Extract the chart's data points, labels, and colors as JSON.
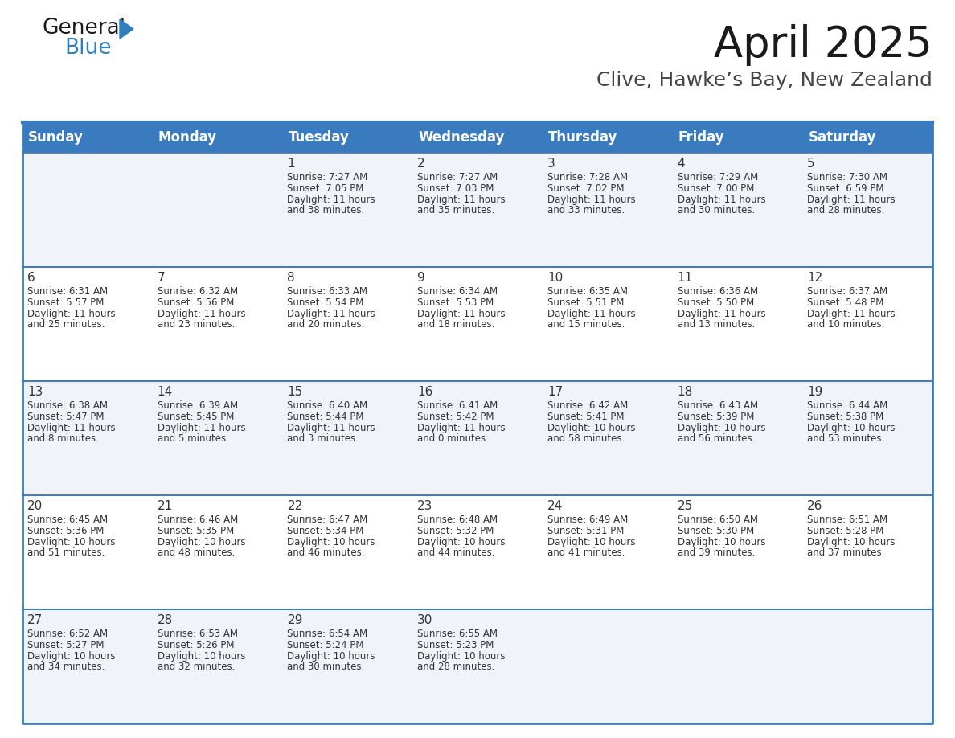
{
  "title": "April 2025",
  "subtitle": "Clive, Hawke’s Bay, New Zealand",
  "header_bg": "#3a7abf",
  "header_text": "#ffffff",
  "day_names": [
    "Sunday",
    "Monday",
    "Tuesday",
    "Wednesday",
    "Thursday",
    "Friday",
    "Saturday"
  ],
  "cell_text_color": "#333333",
  "border_color": "#3a7abf",
  "days": [
    {
      "date": 1,
      "col": 2,
      "row": 0,
      "sunrise": "7:27 AM",
      "sunset": "7:05 PM",
      "daylight": "11 hours and 38 minutes."
    },
    {
      "date": 2,
      "col": 3,
      "row": 0,
      "sunrise": "7:27 AM",
      "sunset": "7:03 PM",
      "daylight": "11 hours and 35 minutes."
    },
    {
      "date": 3,
      "col": 4,
      "row": 0,
      "sunrise": "7:28 AM",
      "sunset": "7:02 PM",
      "daylight": "11 hours and 33 minutes."
    },
    {
      "date": 4,
      "col": 5,
      "row": 0,
      "sunrise": "7:29 AM",
      "sunset": "7:00 PM",
      "daylight": "11 hours and 30 minutes."
    },
    {
      "date": 5,
      "col": 6,
      "row": 0,
      "sunrise": "7:30 AM",
      "sunset": "6:59 PM",
      "daylight": "11 hours and 28 minutes."
    },
    {
      "date": 6,
      "col": 0,
      "row": 1,
      "sunrise": "6:31 AM",
      "sunset": "5:57 PM",
      "daylight": "11 hours and 25 minutes."
    },
    {
      "date": 7,
      "col": 1,
      "row": 1,
      "sunrise": "6:32 AM",
      "sunset": "5:56 PM",
      "daylight": "11 hours and 23 minutes."
    },
    {
      "date": 8,
      "col": 2,
      "row": 1,
      "sunrise": "6:33 AM",
      "sunset": "5:54 PM",
      "daylight": "11 hours and 20 minutes."
    },
    {
      "date": 9,
      "col": 3,
      "row": 1,
      "sunrise": "6:34 AM",
      "sunset": "5:53 PM",
      "daylight": "11 hours and 18 minutes."
    },
    {
      "date": 10,
      "col": 4,
      "row": 1,
      "sunrise": "6:35 AM",
      "sunset": "5:51 PM",
      "daylight": "11 hours and 15 minutes."
    },
    {
      "date": 11,
      "col": 5,
      "row": 1,
      "sunrise": "6:36 AM",
      "sunset": "5:50 PM",
      "daylight": "11 hours and 13 minutes."
    },
    {
      "date": 12,
      "col": 6,
      "row": 1,
      "sunrise": "6:37 AM",
      "sunset": "5:48 PM",
      "daylight": "11 hours and 10 minutes."
    },
    {
      "date": 13,
      "col": 0,
      "row": 2,
      "sunrise": "6:38 AM",
      "sunset": "5:47 PM",
      "daylight": "11 hours and 8 minutes."
    },
    {
      "date": 14,
      "col": 1,
      "row": 2,
      "sunrise": "6:39 AM",
      "sunset": "5:45 PM",
      "daylight": "11 hours and 5 minutes."
    },
    {
      "date": 15,
      "col": 2,
      "row": 2,
      "sunrise": "6:40 AM",
      "sunset": "5:44 PM",
      "daylight": "11 hours and 3 minutes."
    },
    {
      "date": 16,
      "col": 3,
      "row": 2,
      "sunrise": "6:41 AM",
      "sunset": "5:42 PM",
      "daylight": "11 hours and 0 minutes."
    },
    {
      "date": 17,
      "col": 4,
      "row": 2,
      "sunrise": "6:42 AM",
      "sunset": "5:41 PM",
      "daylight": "10 hours and 58 minutes."
    },
    {
      "date": 18,
      "col": 5,
      "row": 2,
      "sunrise": "6:43 AM",
      "sunset": "5:39 PM",
      "daylight": "10 hours and 56 minutes."
    },
    {
      "date": 19,
      "col": 6,
      "row": 2,
      "sunrise": "6:44 AM",
      "sunset": "5:38 PM",
      "daylight": "10 hours and 53 minutes."
    },
    {
      "date": 20,
      "col": 0,
      "row": 3,
      "sunrise": "6:45 AM",
      "sunset": "5:36 PM",
      "daylight": "10 hours and 51 minutes."
    },
    {
      "date": 21,
      "col": 1,
      "row": 3,
      "sunrise": "6:46 AM",
      "sunset": "5:35 PM",
      "daylight": "10 hours and 48 minutes."
    },
    {
      "date": 22,
      "col": 2,
      "row": 3,
      "sunrise": "6:47 AM",
      "sunset": "5:34 PM",
      "daylight": "10 hours and 46 minutes."
    },
    {
      "date": 23,
      "col": 3,
      "row": 3,
      "sunrise": "6:48 AM",
      "sunset": "5:32 PM",
      "daylight": "10 hours and 44 minutes."
    },
    {
      "date": 24,
      "col": 4,
      "row": 3,
      "sunrise": "6:49 AM",
      "sunset": "5:31 PM",
      "daylight": "10 hours and 41 minutes."
    },
    {
      "date": 25,
      "col": 5,
      "row": 3,
      "sunrise": "6:50 AM",
      "sunset": "5:30 PM",
      "daylight": "10 hours and 39 minutes."
    },
    {
      "date": 26,
      "col": 6,
      "row": 3,
      "sunrise": "6:51 AM",
      "sunset": "5:28 PM",
      "daylight": "10 hours and 37 minutes."
    },
    {
      "date": 27,
      "col": 0,
      "row": 4,
      "sunrise": "6:52 AM",
      "sunset": "5:27 PM",
      "daylight": "10 hours and 34 minutes."
    },
    {
      "date": 28,
      "col": 1,
      "row": 4,
      "sunrise": "6:53 AM",
      "sunset": "5:26 PM",
      "daylight": "10 hours and 32 minutes."
    },
    {
      "date": 29,
      "col": 2,
      "row": 4,
      "sunrise": "6:54 AM",
      "sunset": "5:24 PM",
      "daylight": "10 hours and 30 minutes."
    },
    {
      "date": 30,
      "col": 3,
      "row": 4,
      "sunrise": "6:55 AM",
      "sunset": "5:23 PM",
      "daylight": "10 hours and 28 minutes."
    }
  ],
  "num_rows": 5,
  "num_cols": 7,
  "fig_width": 11.88,
  "fig_height": 9.18,
  "title_fontsize": 38,
  "subtitle_fontsize": 18,
  "header_fontsize": 12,
  "date_fontsize": 11,
  "cell_fontsize": 8.5
}
